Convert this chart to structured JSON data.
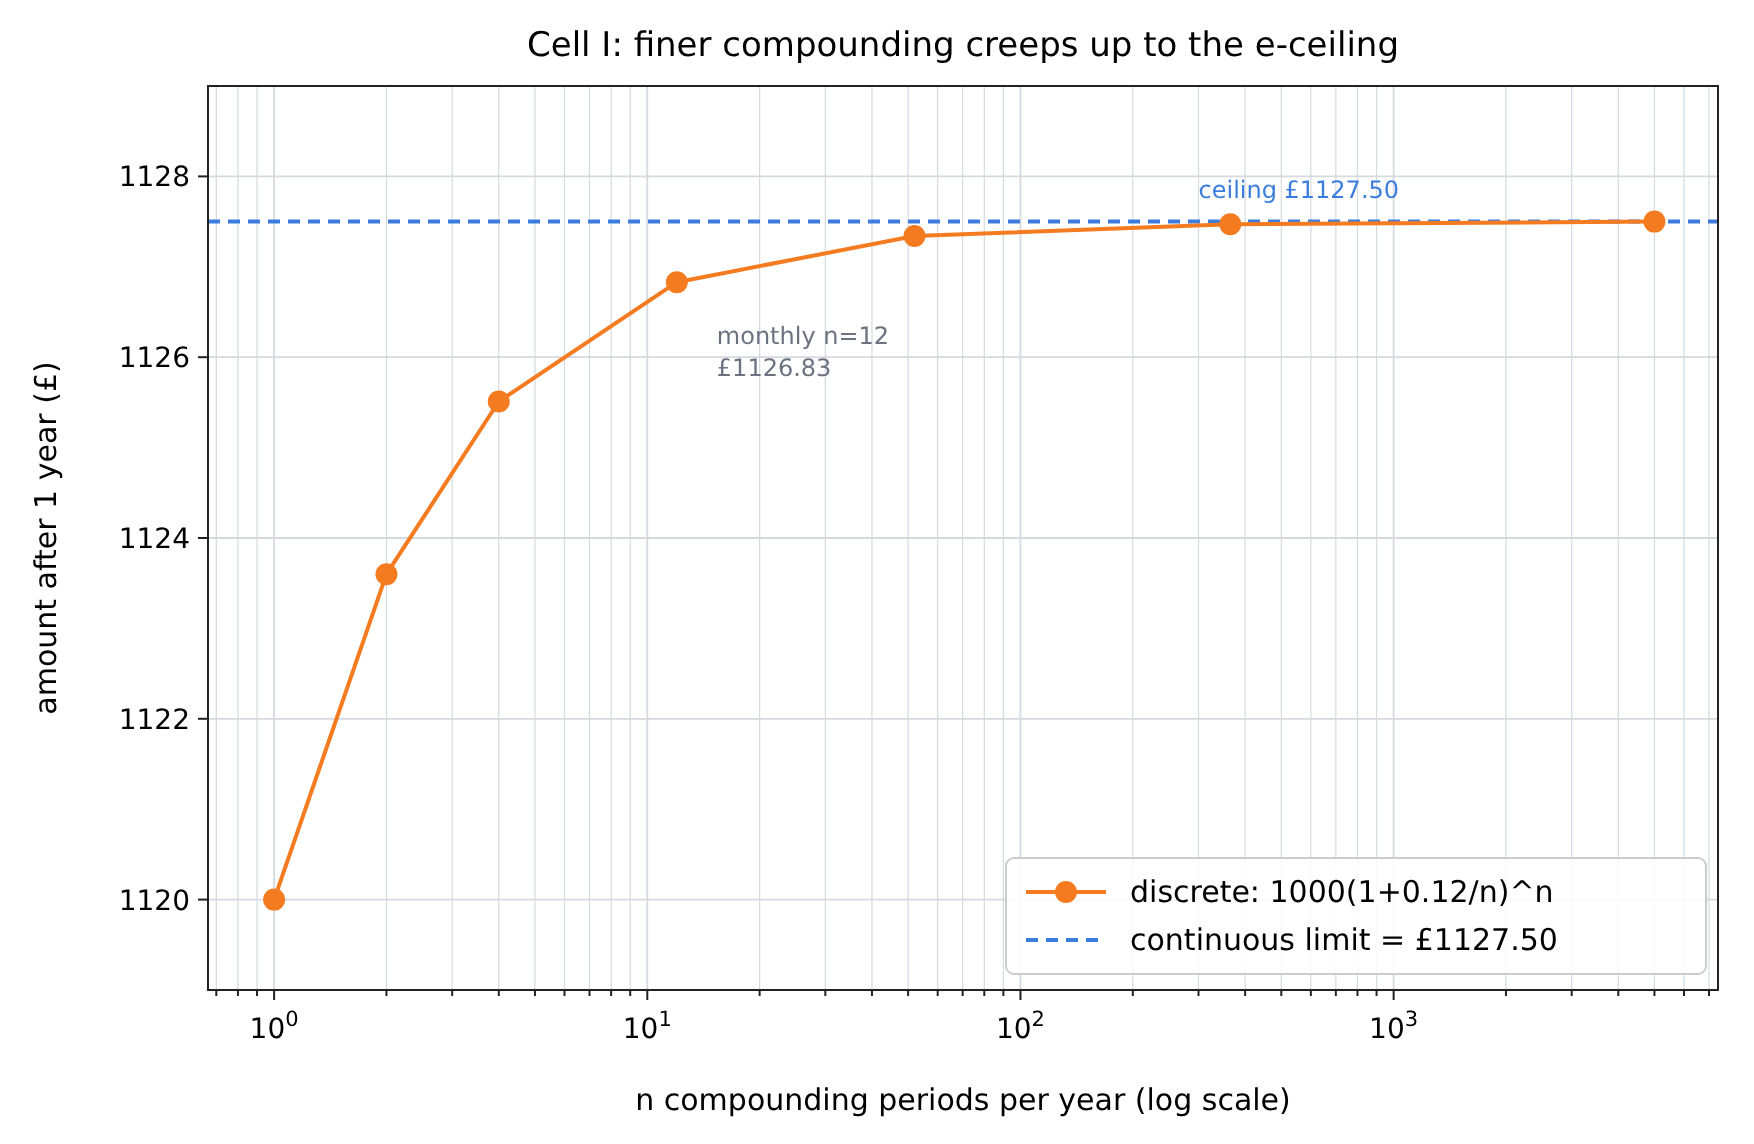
{
  "chart_data": {
    "type": "line",
    "title": "Cell I: finer compounding creeps up to the e-ceiling",
    "xlabel": "n compounding periods per year (log scale)",
    "ylabel": "amount after 1 year (£)",
    "x": [
      1,
      2,
      4,
      12,
      52,
      365,
      5000
    ],
    "series": [
      {
        "name": "discrete: 1000(1+0.12/n)^n",
        "color": "#f47b20",
        "values": [
          1120.0,
          1123.6,
          1125.51,
          1126.83,
          1127.34,
          1127.47,
          1127.5
        ]
      }
    ],
    "log": "x",
    "xlim": [
      0.665,
      7400
    ],
    "ylim": [
      1119,
      1129
    ],
    "xticks": [
      {
        "value": 0.7,
        "label": null
      },
      {
        "value": 0.8,
        "label": null
      },
      {
        "value": 0.9,
        "label": null
      },
      {
        "value": 1,
        "label": "10$^{0}$"
      },
      {
        "value": 2,
        "label": null
      },
      {
        "value": 3,
        "label": null
      },
      {
        "value": 4,
        "label": null
      },
      {
        "value": 5,
        "label": null
      },
      {
        "value": 6,
        "label": null
      },
      {
        "value": 7,
        "label": null
      },
      {
        "value": 8,
        "label": null
      },
      {
        "value": 9,
        "label": null
      },
      {
        "value": 10,
        "label": "10$^{1}$"
      },
      {
        "value": 20,
        "label": null
      },
      {
        "value": 30,
        "label": null
      },
      {
        "value": 40,
        "label": null
      },
      {
        "value": 50,
        "label": null
      },
      {
        "value": 60,
        "label": null
      },
      {
        "value": 70,
        "label": null
      },
      {
        "value": 80,
        "label": null
      },
      {
        "value": 90,
        "label": null
      },
      {
        "value": 100,
        "label": "10$^{2}$"
      },
      {
        "value": 200,
        "label": null
      },
      {
        "value": 300,
        "label": null
      },
      {
        "value": 400,
        "label": null
      },
      {
        "value": 500,
        "label": null
      },
      {
        "value": 600,
        "label": null
      },
      {
        "value": 700,
        "label": null
      },
      {
        "value": 800,
        "label": null
      },
      {
        "value": 900,
        "label": null
      },
      {
        "value": 1000,
        "label": "10$^{3}$"
      },
      {
        "value": 2000,
        "label": null
      },
      {
        "value": 3000,
        "label": null
      },
      {
        "value": 4000,
        "label": null
      },
      {
        "value": 5000,
        "label": null
      },
      {
        "value": 6000,
        "label": null
      },
      {
        "value": 7000,
        "label": null
      }
    ],
    "yticks": [
      1120,
      1122,
      1124,
      1126,
      1128
    ],
    "ref_lines": [
      {
        "axis": "y",
        "value": 1127.5,
        "label": "continuous limit = £1127.50",
        "color": "#3b7ddd",
        "line_style": "dashed"
      }
    ],
    "annotations": [
      "monthly n=12\n£1126.83",
      {
        "text": "ceiling £1127.50",
        "x": 300,
        "y": 1127.5
      }
    ],
    "grid": true,
    "legend": "bottom right",
    "marker": "circle",
    "line_style": "solid"
  }
}
